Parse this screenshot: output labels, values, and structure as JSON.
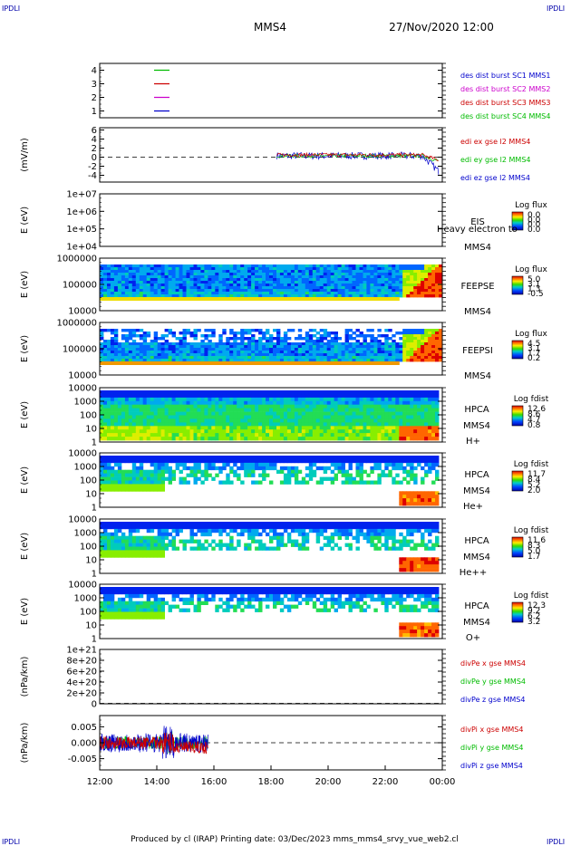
{
  "corner_label": "IPDLI",
  "header": {
    "spacecraft": "MMS4",
    "date": "27/Nov/2020 12:00"
  },
  "footer": {
    "text": "Produced by cl (IRAP)   Printing date: 03/Dec/2023   mms_mms4_srvy_vue_web2.cl"
  },
  "time_axis": {
    "ticks": [
      "12:00",
      "14:00",
      "16:00",
      "18:00",
      "20:00",
      "22:00",
      "00:00"
    ]
  },
  "colors": {
    "blue": "#0000cc",
    "magenta": "#cc00cc",
    "red": "#cc0000",
    "green": "#00bb00"
  },
  "chart_data": [
    {
      "type": "line",
      "panel": "burst",
      "y_ticks": [
        "4",
        "3",
        "2",
        "1"
      ],
      "ylim": [
        0.5,
        4.5
      ],
      "legend": [
        {
          "name": "des dist burst SC1 MMS1",
          "color": "#0000cc"
        },
        {
          "name": "des dist burst SC2 MMS2",
          "color": "#cc00cc"
        },
        {
          "name": "des dist burst SC3 MMS3",
          "color": "#cc0000"
        },
        {
          "name": "des dist burst SC4 MMS4",
          "color": "#00bb00"
        }
      ],
      "series": [
        {
          "level": 4,
          "color": "#00bb00"
        },
        {
          "level": 3,
          "color": "#cc0000"
        },
        {
          "level": 2,
          "color": "#cc00cc"
        },
        {
          "level": 1,
          "color": "#0000cc"
        }
      ]
    },
    {
      "type": "line",
      "panel": "edi",
      "ylabel": "(mV/m)",
      "y_ticks": [
        "6",
        "4",
        "2",
        "0",
        "-2",
        "-4"
      ],
      "ylim": [
        -5.5,
        6.5
      ],
      "x_start_hours": 18.2,
      "legend": [
        {
          "name": "edi ex gse l2 MMS4",
          "color": "#cc0000"
        },
        {
          "name": "edi ey gse l2 MMS4",
          "color": "#00bb00"
        },
        {
          "name": "edi ez gse l2 MMS4",
          "color": "#0000cc"
        }
      ]
    },
    {
      "type": "heatmap",
      "panel": "eis",
      "ylabel": "E (eV)",
      "y_ticks": [
        "1e+07",
        "1e+06",
        "1e+05",
        "1e+04"
      ],
      "instrument": [
        "EIS",
        "MMS4"
      ],
      "overlay": "Heavy electron to",
      "colorbar": {
        "title": "Log flux",
        "ticks": [
          "0.0",
          "0.0",
          "0.0",
          "0.0"
        ]
      }
    },
    {
      "type": "heatmap",
      "panel": "feeps_e",
      "ylabel": "E (eV)",
      "y_ticks": [
        "1000000",
        "100000",
        "10000"
      ],
      "instrument": [
        "FEEPSE",
        "MMS4"
      ],
      "colorbar": {
        "title": "Log flux",
        "ticks": [
          "5.0",
          "3.1",
          "1.3",
          "-0.5"
        ]
      }
    },
    {
      "type": "heatmap",
      "panel": "feeps_i",
      "ylabel": "E (eV)",
      "y_ticks": [
        "1000000",
        "100000",
        "10000"
      ],
      "instrument": [
        "FEEPSI",
        "MMS4"
      ],
      "colorbar": {
        "title": "Log flux",
        "ticks": [
          "4.5",
          "3.1",
          "1.7",
          "0.2"
        ]
      }
    },
    {
      "type": "heatmap",
      "panel": "hpca_h",
      "ylabel": "E (eV)",
      "y_ticks": [
        "10000",
        "1000",
        "100",
        "10",
        "1"
      ],
      "instrument": [
        "HPCA",
        "MMS4",
        "H+"
      ],
      "colorbar": {
        "title": "Log fdist",
        "ticks": [
          "12.6",
          "8.6",
          "4.7",
          "0.8"
        ]
      }
    },
    {
      "type": "heatmap",
      "panel": "hpca_he1",
      "ylabel": "E (eV)",
      "y_ticks": [
        "10000",
        "1000",
        "100",
        "10",
        "1"
      ],
      "instrument": [
        "HPCA",
        "MMS4",
        "He+"
      ],
      "colorbar": {
        "title": "Log fdist",
        "ticks": [
          "11.7",
          "8.4",
          "5.2",
          "2.0"
        ]
      }
    },
    {
      "type": "heatmap",
      "panel": "hpca_he2",
      "ylabel": "E (eV)",
      "y_ticks": [
        "10000",
        "1000",
        "100",
        "10",
        "1"
      ],
      "instrument": [
        "HPCA",
        "MMS4",
        "He++"
      ],
      "colorbar": {
        "title": "Log fdist",
        "ticks": [
          "11.6",
          "8.3",
          "5.0",
          "1.7"
        ]
      }
    },
    {
      "type": "heatmap",
      "panel": "hpca_o",
      "ylabel": "E (eV)",
      "y_ticks": [
        "10000",
        "1000",
        "100",
        "10",
        "1"
      ],
      "instrument": [
        "HPCA",
        "MMS4",
        "O+"
      ],
      "colorbar": {
        "title": "Log fdist",
        "ticks": [
          "12.3",
          "9.2",
          "6.2",
          "3.2"
        ]
      }
    },
    {
      "type": "line",
      "panel": "divpe",
      "ylabel": "(nPa/km)",
      "y_ticks": [
        "1e+21",
        "8e+20",
        "6e+20",
        "4e+20",
        "2e+20",
        "0"
      ],
      "ylim": [
        0,
        1e+21
      ],
      "legend": [
        {
          "name": "divPe x gse MMS4",
          "color": "#cc0000"
        },
        {
          "name": "divPe y gse MMS4",
          "color": "#00bb00"
        },
        {
          "name": "divPe z gse MMS4",
          "color": "#0000cc"
        }
      ]
    },
    {
      "type": "line",
      "panel": "divpi",
      "ylabel": "(nPa/km)",
      "y_ticks": [
        "0.005",
        "0.000",
        "-0.005"
      ],
      "ylim": [
        -0.0085,
        0.0085
      ],
      "x_end_hours": 15.8,
      "legend": [
        {
          "name": "divPi x gse MMS4",
          "color": "#cc0000"
        },
        {
          "name": "divPi y gse MMS4",
          "color": "#00bb00"
        },
        {
          "name": "divPi z gse MMS4",
          "color": "#0000cc"
        }
      ]
    }
  ]
}
